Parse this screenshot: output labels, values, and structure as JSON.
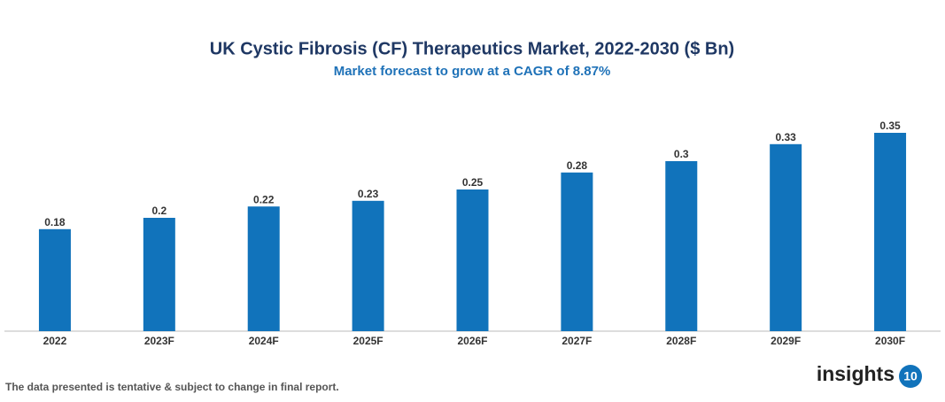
{
  "chart_data": {
    "type": "bar",
    "title": "UK Cystic Fibrosis (CF) Therapeutics Market, 2022-2030 ($ Bn)",
    "subtitle": "Market forecast to grow at a CAGR of 8.87%",
    "categories": [
      "2022",
      "2023F",
      "2024F",
      "2025F",
      "2026F",
      "2027F",
      "2028F",
      "2029F",
      "2030F"
    ],
    "values": [
      0.18,
      0.2,
      0.22,
      0.23,
      0.25,
      0.28,
      0.3,
      0.33,
      0.35
    ],
    "color": "#1173bb",
    "footnote": "The data presented is tentative & subject to change in final report.",
    "logo": {
      "text": "insights",
      "badge": "10"
    }
  }
}
